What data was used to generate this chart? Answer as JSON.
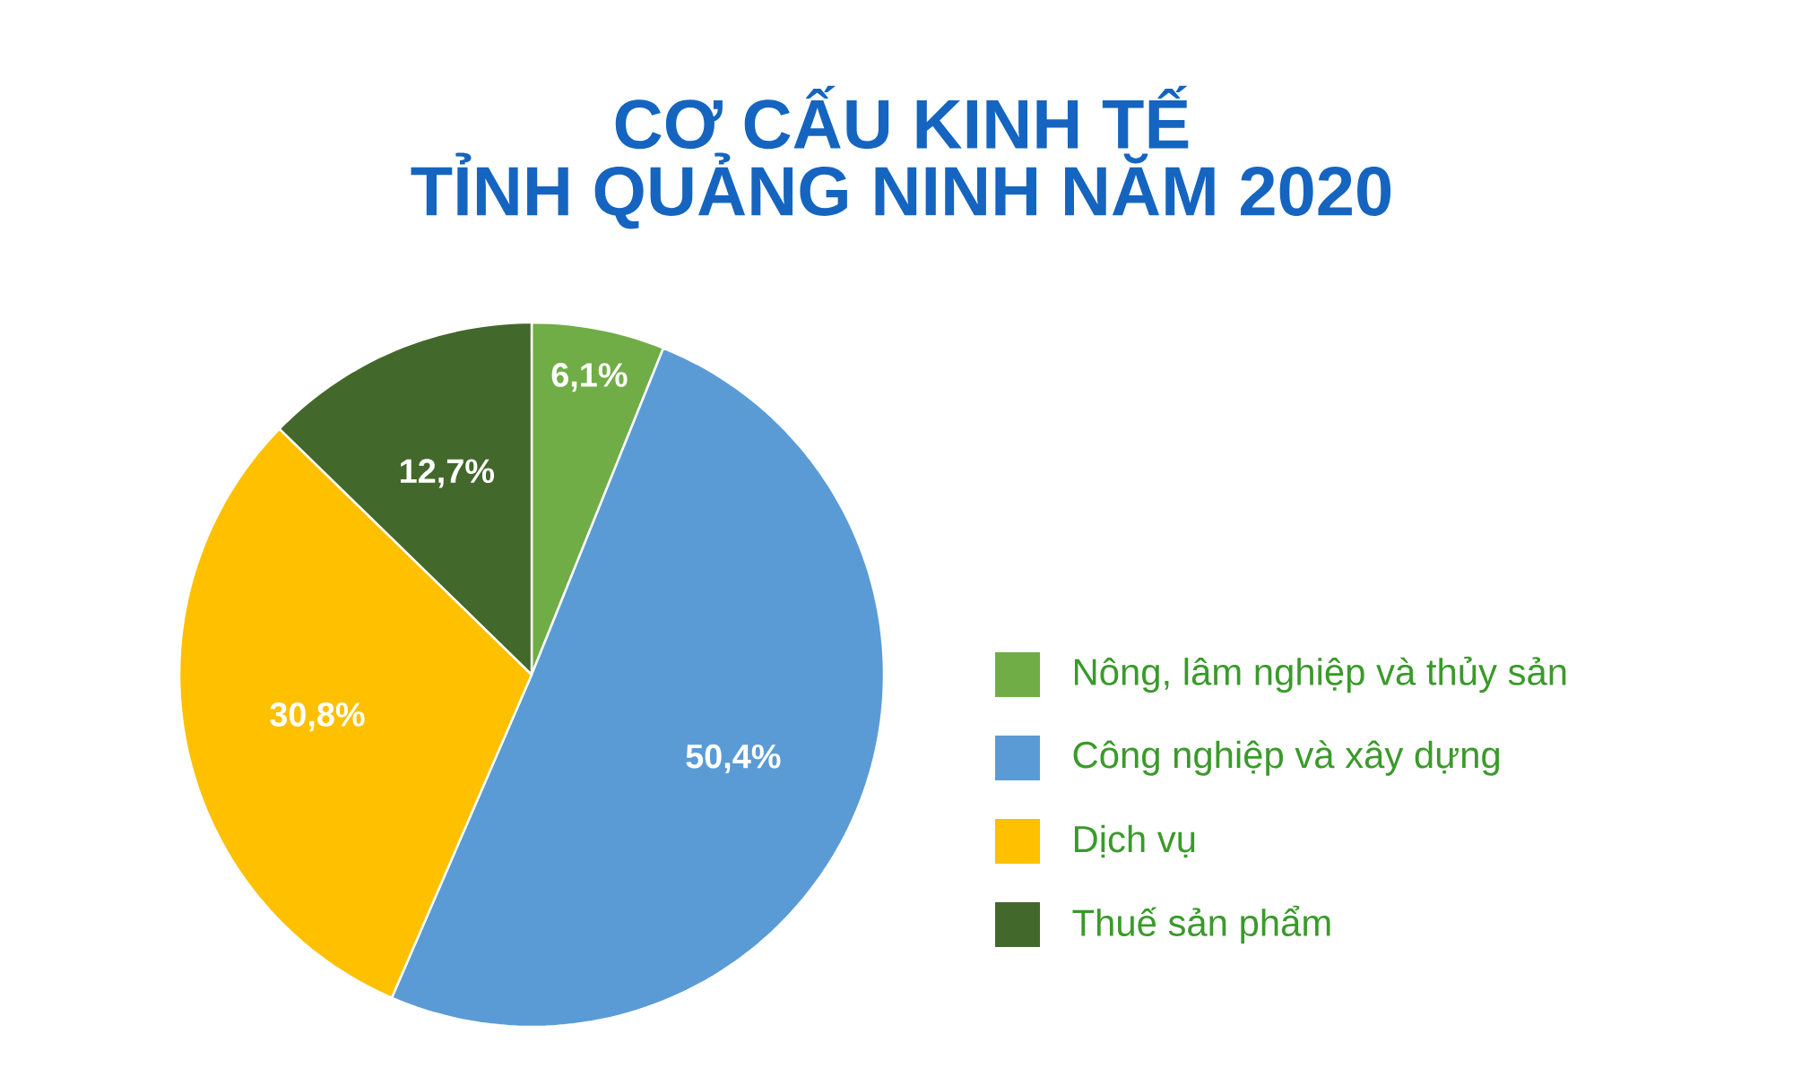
{
  "chart_data": {
    "type": "pie",
    "title": "CƠ CẤU KINH TẾ",
    "subtitle": "TỈNH QUẢNG NINH NĂM 2020",
    "categories": [
      "Nông, lâm nghiệp và thủy sản",
      "Công nghiệp và xây dựng",
      "Dịch vụ",
      "Thuế sản phẩm"
    ],
    "values": [
      6.1,
      50.4,
      30.8,
      12.7
    ],
    "value_labels": [
      "6,1%",
      "50,4%",
      "30,8%",
      "12,7%"
    ],
    "colors": [
      "#70ad47",
      "#5b9bd5",
      "#ffc000",
      "#43682b"
    ],
    "legend": "right"
  }
}
